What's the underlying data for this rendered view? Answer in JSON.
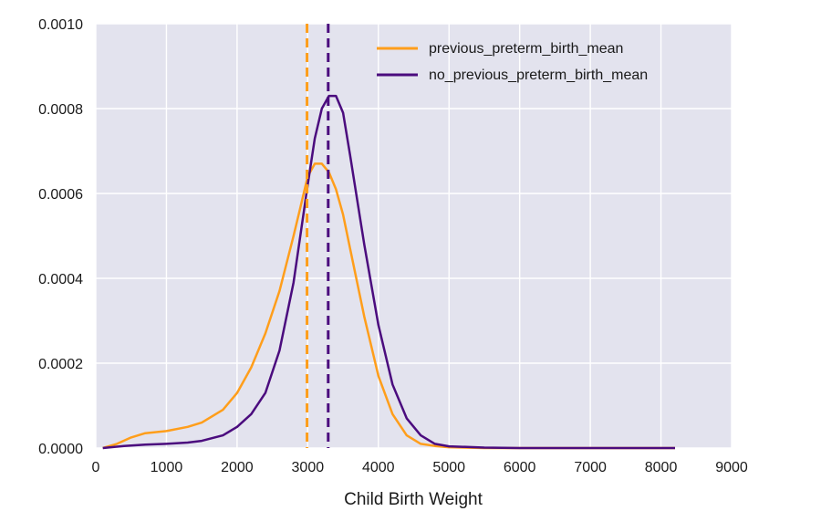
{
  "chart_data": {
    "type": "line",
    "title": "",
    "xlabel": "Child Birth Weight",
    "ylabel": "",
    "xlim": [
      0,
      9000
    ],
    "ylim": [
      0,
      0.001
    ],
    "x_ticks": [
      "0",
      "1000",
      "2000",
      "3000",
      "4000",
      "5000",
      "6000",
      "7000",
      "8000",
      "9000"
    ],
    "y_ticks": [
      "0.0000",
      "0.0002",
      "0.0004",
      "0.0006",
      "0.0008",
      "0.0010"
    ],
    "grid": true,
    "legend_position": "top-right",
    "background": "#e3e3ee",
    "series": [
      {
        "name": "previous_preterm_birth_mean",
        "color": "#ff9e1b",
        "mean": 2990,
        "x": [
          100,
          300,
          500,
          700,
          1000,
          1300,
          1500,
          1800,
          2000,
          2200,
          2400,
          2600,
          2800,
          2900,
          3000,
          3100,
          3200,
          3300,
          3400,
          3500,
          3600,
          3800,
          4000,
          4200,
          4400,
          4600,
          4800,
          5000,
          5500,
          6000,
          7000,
          8200
        ],
        "y": [
          0.0,
          1e-05,
          2.5e-05,
          3.5e-05,
          4e-05,
          5e-05,
          6e-05,
          9e-05,
          0.00013,
          0.00019,
          0.00027,
          0.00037,
          0.0005,
          0.00057,
          0.00064,
          0.00067,
          0.00067,
          0.00065,
          0.00061,
          0.00055,
          0.00047,
          0.00031,
          0.00017,
          8e-05,
          3e-05,
          1e-05,
          5e-06,
          2e-06,
          0.0,
          0.0,
          0.0,
          0.0
        ]
      },
      {
        "name": "no_previous_preterm_birth_mean",
        "color": "#4b0c7e",
        "mean": 3290,
        "x": [
          100,
          400,
          700,
          1000,
          1300,
          1500,
          1800,
          2000,
          2200,
          2400,
          2600,
          2800,
          3000,
          3100,
          3200,
          3300,
          3400,
          3500,
          3600,
          3800,
          4000,
          4200,
          4400,
          4600,
          4800,
          5000,
          5500,
          6000,
          7000,
          8200
        ],
        "y": [
          0.0,
          5e-06,
          8e-06,
          1e-05,
          1.3e-05,
          1.7e-05,
          3e-05,
          5e-05,
          8e-05,
          0.00013,
          0.00023,
          0.00039,
          0.00062,
          0.00073,
          0.0008,
          0.00083,
          0.00083,
          0.00079,
          0.00069,
          0.00048,
          0.00029,
          0.00015,
          7e-05,
          3e-05,
          1e-05,
          4e-06,
          1e-06,
          0.0,
          0.0,
          0.0
        ]
      }
    ]
  }
}
